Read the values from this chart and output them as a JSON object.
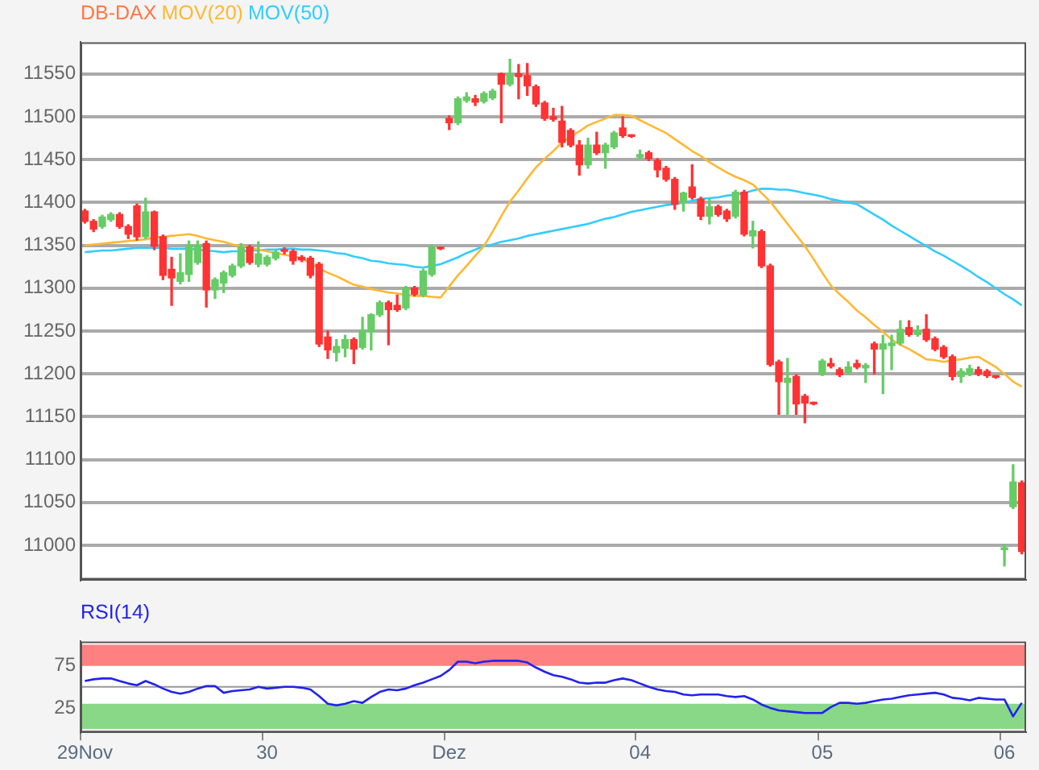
{
  "chart_data": [
    {
      "type": "candlestick",
      "title": "DB-DAX",
      "legend": "top left",
      "grid": "y",
      "tick_labels": "y",
      "marker": "none",
      "line_style": "solid",
      "categories": [
        null,
        null,
        null,
        null,
        null,
        null,
        null,
        null,
        null,
        null,
        null,
        null,
        null,
        null,
        null,
        null,
        null,
        null,
        null,
        null,
        null,
        null,
        null,
        null,
        null,
        null,
        null,
        null,
        null,
        null,
        null,
        null,
        null,
        null,
        null,
        null,
        null,
        null,
        null,
        null,
        null,
        null,
        null,
        null,
        null,
        null,
        null,
        null,
        null,
        null,
        null,
        null,
        null,
        null,
        null,
        null,
        null,
        null,
        null,
        null,
        null,
        null,
        null,
        null,
        null,
        null,
        null,
        null,
        null,
        null,
        null,
        null,
        null,
        null,
        null,
        null,
        null,
        null,
        null,
        null,
        null,
        null,
        null,
        null,
        null,
        null,
        null,
        null,
        null,
        null,
        null,
        null,
        null,
        null,
        null,
        null,
        null,
        null,
        null,
        null,
        null,
        null,
        null,
        null,
        null,
        null,
        null,
        null,
        null
      ],
      "ohlc": [
        [
          11390,
          11392,
          11376,
          11378
        ],
        [
          11378,
          11380,
          11366,
          11369
        ],
        [
          11372,
          11385,
          11370,
          11383
        ],
        [
          11380,
          11388,
          11378,
          11386
        ],
        [
          11386,
          11388,
          11370,
          11372
        ],
        [
          11372,
          11374,
          11358,
          11363
        ],
        [
          11396,
          11398,
          11356,
          11360
        ],
        [
          11360,
          11405,
          11358,
          11389
        ],
        [
          11389,
          11390,
          11345,
          11349
        ],
        [
          11360,
          11362,
          11310,
          11315
        ],
        [
          11322,
          11336,
          11280,
          11312
        ],
        [
          11308,
          11340,
          11305,
          11318
        ],
        [
          11316,
          11355,
          11308,
          11350
        ],
        [
          11330,
          11355,
          11328,
          11350
        ],
        [
          11352,
          11355,
          11278,
          11298
        ],
        [
          11298,
          11312,
          11288,
          11310
        ],
        [
          11306,
          11320,
          11295,
          11318
        ],
        [
          11315,
          11328,
          11313,
          11326
        ],
        [
          11326,
          11352,
          11324,
          11348
        ],
        [
          11348,
          11350,
          11328,
          11330
        ],
        [
          11328,
          11354,
          11325,
          11340
        ],
        [
          11328,
          11338,
          11326,
          11336
        ],
        [
          11335,
          11344,
          11333,
          11342
        ],
        [
          11345,
          11347,
          11340,
          11343
        ],
        [
          11343,
          11345,
          11328,
          11332
        ],
        [
          11336,
          11338,
          11331,
          11333
        ],
        [
          11335,
          11337,
          11312,
          11315
        ],
        [
          11328,
          11330,
          11232,
          11235
        ],
        [
          11243,
          11250,
          11218,
          11228
        ],
        [
          11225,
          11240,
          11215,
          11232
        ],
        [
          11230,
          11245,
          11220,
          11240
        ],
        [
          11240,
          11242,
          11212,
          11229
        ],
        [
          11231,
          11266,
          11229,
          11251
        ],
        [
          11249,
          11270,
          11228,
          11269
        ],
        [
          11269,
          11285,
          11267,
          11283
        ],
        [
          11283,
          11285,
          11234,
          11275
        ],
        [
          11280,
          11292,
          11273,
          11275
        ],
        [
          11277,
          11302,
          11275,
          11300
        ],
        [
          11300,
          11302,
          11291,
          11293
        ],
        [
          11292,
          11322,
          11290,
          11320
        ],
        [
          11316,
          11350,
          11314,
          11348
        ],
        [
          11347,
          11348,
          11345,
          11346
        ],
        [
          11498,
          11501,
          11485,
          11493
        ],
        [
          11493,
          11523,
          11491,
          11521
        ],
        [
          11519,
          11528,
          11517,
          11523
        ],
        [
          11521,
          11525,
          11513,
          11517
        ],
        [
          11518,
          11529,
          11516,
          11527
        ],
        [
          11522,
          11532,
          11520,
          11530
        ],
        [
          11550,
          11551,
          11493,
          11538
        ],
        [
          11538,
          11567,
          11536,
          11550
        ],
        [
          11550,
          11561,
          11521,
          11547
        ],
        [
          11548,
          11562,
          11525,
          11536
        ],
        [
          11535,
          11537,
          11512,
          11515
        ],
        [
          11516,
          11518,
          11496,
          11498
        ],
        [
          11500,
          11510,
          11495,
          11497
        ],
        [
          11495,
          11512,
          11465,
          11470
        ],
        [
          11484,
          11486,
          11465,
          11467
        ],
        [
          11467,
          11472,
          11432,
          11444
        ],
        [
          11444,
          11475,
          11440,
          11467
        ],
        [
          11467,
          11482,
          11456,
          11458
        ],
        [
          11458,
          11469,
          11440,
          11467
        ],
        [
          11465,
          11483,
          11463,
          11481
        ],
        [
          11487,
          11500,
          11476,
          11478
        ],
        [
          11478,
          11479,
          11476,
          11477
        ],
        [
          11453,
          11461,
          11451,
          11456
        ],
        [
          11458,
          11460,
          11449,
          11451
        ],
        [
          11449,
          11451,
          11430,
          11438
        ],
        [
          11440,
          11442,
          11425,
          11427
        ],
        [
          11427,
          11429,
          11392,
          11398
        ],
        [
          11400,
          11412,
          11390,
          11411
        ],
        [
          11418,
          11444,
          11404,
          11406
        ],
        [
          11404,
          11406,
          11380,
          11384
        ],
        [
          11384,
          11404,
          11375,
          11395
        ],
        [
          11395,
          11397,
          11384,
          11386
        ],
        [
          11390,
          11392,
          11378,
          11381
        ],
        [
          11384,
          11414,
          11382,
          11412
        ],
        [
          11412,
          11414,
          11361,
          11363
        ],
        [
          11361,
          11378,
          11347,
          11367
        ],
        [
          11366,
          11368,
          11324,
          11326
        ],
        [
          11326,
          11328,
          11209,
          11211
        ],
        [
          11214,
          11216,
          11153,
          11191
        ],
        [
          11190,
          11218,
          11153,
          11195
        ],
        [
          11197,
          11199,
          11153,
          11165
        ],
        [
          11174,
          11176,
          11143,
          11166
        ],
        [
          11166,
          11167,
          11164,
          11165
        ],
        [
          11200,
          11217,
          11198,
          11215
        ],
        [
          11212,
          11218,
          11207,
          11209
        ],
        [
          11205,
          11207,
          11197,
          11199
        ],
        [
          11202,
          11214,
          11200,
          11208
        ],
        [
          11212,
          11216,
          11206,
          11208
        ],
        [
          11207,
          11212,
          11190,
          11210
        ],
        [
          11235,
          11237,
          11200,
          11229
        ],
        [
          11229,
          11245,
          11177,
          11235
        ],
        [
          11233,
          11245,
          11205,
          11236
        ],
        [
          11236,
          11262,
          11234,
          11252
        ],
        [
          11254,
          11262,
          11244,
          11246
        ],
        [
          11246,
          11256,
          11244,
          11251
        ],
        [
          11252,
          11269,
          11238,
          11240
        ],
        [
          11241,
          11243,
          11227,
          11229
        ],
        [
          11231,
          11233,
          11218,
          11220
        ],
        [
          11220,
          11222,
          11193,
          11197
        ],
        [
          11197,
          11206,
          11190,
          11203
        ],
        [
          11200,
          11210,
          11198,
          11206
        ],
        [
          11205,
          11208,
          11198,
          11200
        ],
        [
          11203,
          11205,
          11196,
          11198
        ],
        [
          11197,
          11198,
          11195,
          11196
        ],
        [
          10995,
          11001,
          10976,
          10997
        ],
        [
          11045,
          11094,
          11043,
          11074
        ],
        [
          11073,
          11075,
          10990,
          10993
        ]
      ],
      "series": [
        {
          "name": "MOV(20)",
          "type": "line",
          "color": "#ffb833",
          "values": [
            11350,
            11351,
            11352,
            11353,
            11354,
            11355,
            11356,
            11357,
            11359,
            11360,
            11361,
            11362,
            11363,
            11361,
            11358,
            11356,
            11354,
            11351,
            11349,
            11347,
            11345,
            11343,
            11341,
            11339,
            11337,
            11335,
            11329,
            11323,
            11318,
            11314,
            11309,
            11304,
            11302,
            11299,
            11297,
            11295,
            11294,
            11292,
            11291,
            11291,
            11290,
            11289,
            11302,
            11315,
            11326,
            11338,
            11349,
            11366,
            11384,
            11401,
            11414,
            11428,
            11441,
            11451,
            11460,
            11470,
            11477,
            11483,
            11490,
            11494,
            11498,
            11502,
            11502,
            11501,
            11496,
            11491,
            11486,
            11481,
            11474,
            11467,
            11460,
            11454,
            11447,
            11441,
            11435,
            11430,
            11426,
            11421,
            11411,
            11401,
            11388,
            11375,
            11362,
            11349,
            11334,
            11318,
            11303,
            11293,
            11284,
            11274,
            11266,
            11257,
            11249,
            11240,
            11234,
            11229,
            11223,
            11217,
            11216,
            11214,
            11216,
            11217,
            11219,
            11220,
            11214,
            11208,
            11200,
            11191,
            11185
          ]
        },
        {
          "name": "MOV(50)",
          "type": "line",
          "color": "#33ccff",
          "values": [
            11342,
            11343,
            11344,
            11344,
            11345,
            11346,
            11347,
            11347,
            11347,
            11347,
            11346,
            11346,
            11346,
            11345,
            11344,
            11343,
            11342,
            11343,
            11343,
            11344,
            11344,
            11345,
            11345,
            11346,
            11346,
            11345,
            11345,
            11344,
            11343,
            11341,
            11340,
            11337,
            11335,
            11332,
            11331,
            11329,
            11328,
            11327,
            11325,
            11324,
            11326,
            11328,
            11332,
            11336,
            11341,
            11345,
            11349,
            11351,
            11354,
            11356,
            11358,
            11361,
            11363,
            11365,
            11367,
            11369,
            11371,
            11373,
            11375,
            11378,
            11381,
            11383,
            11386,
            11389,
            11391,
            11393,
            11395,
            11397,
            11398,
            11400,
            11402,
            11404,
            11405,
            11406,
            11408,
            11409,
            11411,
            11414,
            11416,
            11416,
            11415,
            11415,
            11413,
            11411,
            11409,
            11407,
            11404,
            11402,
            11400,
            11398,
            11392,
            11386,
            11380,
            11373,
            11367,
            11361,
            11355,
            11349,
            11343,
            11338,
            11332,
            11326,
            11320,
            11313,
            11307,
            11300,
            11293,
            11287,
            11280
          ]
        }
      ],
      "ylim": [
        10960,
        11587
      ],
      "yticks": [
        11000,
        11050,
        11100,
        11150,
        11200,
        11250,
        11300,
        11350,
        11400,
        11450,
        11500,
        11550
      ]
    },
    {
      "type": "line",
      "title": "RSI(14)",
      "marker": "none",
      "line_style": "solid",
      "categories": [
        "29Nov",
        null,
        null,
        null,
        null,
        null,
        null,
        null,
        null,
        null,
        null,
        null,
        null,
        null,
        null,
        null,
        null,
        null,
        null,
        null,
        null,
        "30",
        null,
        null,
        null,
        null,
        null,
        null,
        null,
        null,
        null,
        null,
        null,
        null,
        null,
        null,
        null,
        null,
        null,
        null,
        null,
        null,
        "Dez",
        null,
        null,
        null,
        null,
        null,
        null,
        null,
        null,
        null,
        null,
        null,
        null,
        null,
        null,
        null,
        null,
        null,
        null,
        null,
        null,
        null,
        "04",
        null,
        null,
        null,
        null,
        null,
        null,
        null,
        null,
        null,
        null,
        null,
        null,
        null,
        null,
        null,
        null,
        null,
        null,
        null,
        null,
        "05",
        null,
        null,
        null,
        null,
        null,
        null,
        null,
        null,
        null,
        null,
        null,
        null,
        null,
        null,
        null,
        null,
        null,
        null,
        null,
        null,
        "06",
        null,
        null
      ],
      "series": [
        {
          "color": "#2222ee",
          "values": [
            57,
            59,
            60,
            60,
            57,
            54,
            52,
            57,
            53,
            48,
            44,
            42,
            44,
            48,
            51,
            51,
            43,
            45,
            46,
            47,
            50,
            48,
            49,
            50,
            50,
            49,
            47,
            39,
            30,
            28,
            30,
            33,
            31,
            38,
            44,
            47,
            46,
            48,
            52,
            55,
            59,
            63,
            70,
            80,
            80,
            78,
            80,
            81,
            81,
            81,
            81,
            79,
            73,
            68,
            64,
            62,
            59,
            55,
            54,
            55,
            55,
            58,
            60,
            58,
            54,
            50,
            47,
            45,
            44,
            41,
            40,
            41,
            41,
            41,
            39,
            38,
            39,
            35,
            29,
            25,
            22,
            21,
            20,
            19,
            19,
            19,
            26,
            31,
            31,
            30,
            31,
            33,
            35,
            36,
            38,
            40,
            41,
            42,
            43,
            41,
            37,
            36,
            34,
            37,
            36,
            35,
            35,
            15,
            31
          ]
        }
      ],
      "bands": [
        {
          "axis": "y",
          "from": 75,
          "to": 100,
          "color": "#ff8080"
        },
        {
          "axis": "y",
          "from": 0,
          "to": 30,
          "color": "#88d888"
        }
      ],
      "ref_lines": [
        {
          "axis": "y",
          "value": 50,
          "color": "#999999"
        }
      ],
      "ylim": [
        -4,
        104
      ],
      "yticks": [
        25,
        75
      ]
    }
  ]
}
